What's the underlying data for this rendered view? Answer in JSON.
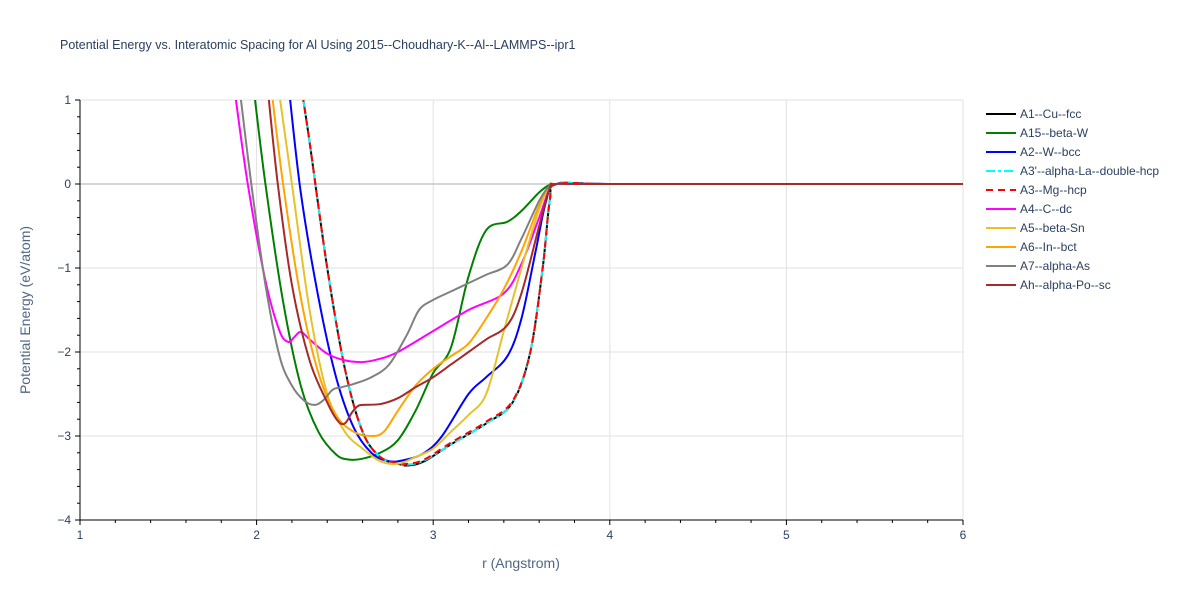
{
  "chart_data": {
    "type": "line",
    "title": "Potential Energy vs. Interatomic Spacing for Al Using 2015--Choudhary-K--Al--LAMMPS--ipr1",
    "xlabel": "r (Angstrom)",
    "ylabel": "Potential Energy (eV/atom)",
    "xlim": [
      1,
      6
    ],
    "ylim": [
      -4,
      1
    ],
    "xticks": [
      "1",
      "2",
      "3",
      "4",
      "5",
      "6"
    ],
    "yticks": [
      "−4",
      "−3",
      "−2",
      "−1",
      "0",
      "1"
    ],
    "grid": true,
    "legend_position": "top-right",
    "series": [
      {
        "name": "A1--Cu--fcc",
        "color": "#000000",
        "dash": "solid",
        "x": [
          2.25,
          2.3,
          2.4,
          2.5,
          2.6,
          2.7,
          2.8,
          2.86,
          2.95,
          3.1,
          3.3,
          3.45,
          3.55,
          3.62,
          3.66,
          3.7,
          4.0,
          5.0,
          6.0
        ],
        "y": [
          1.2,
          0.5,
          -1.0,
          -2.2,
          -2.95,
          -3.25,
          -3.33,
          -3.35,
          -3.3,
          -3.1,
          -2.85,
          -2.6,
          -2.0,
          -1.0,
          -0.2,
          0,
          0,
          0,
          0
        ]
      },
      {
        "name": "A15--beta-W",
        "color": "#008000",
        "dash": "solid",
        "x": [
          1.98,
          2.05,
          2.15,
          2.25,
          2.35,
          2.45,
          2.52,
          2.6,
          2.7,
          2.8,
          2.9,
          3.0,
          3.1,
          3.2,
          3.3,
          3.42,
          3.5,
          3.6,
          3.66,
          3.7,
          4.0,
          6.0
        ],
        "y": [
          1.2,
          0.0,
          -1.4,
          -2.4,
          -2.95,
          -3.22,
          -3.28,
          -3.27,
          -3.2,
          -3.05,
          -2.7,
          -2.25,
          -1.95,
          -1.1,
          -0.55,
          -0.45,
          -0.32,
          -0.1,
          -0.01,
          0,
          0,
          0
        ]
      },
      {
        "name": "A2--W--bcc",
        "color": "#0000ff",
        "dash": "solid",
        "x": [
          2.18,
          2.25,
          2.35,
          2.45,
          2.55,
          2.65,
          2.75,
          2.85,
          2.95,
          3.05,
          3.2,
          3.3,
          3.42,
          3.5,
          3.58,
          3.64,
          3.7,
          4.0,
          6.0
        ],
        "y": [
          1.2,
          -0.1,
          -1.35,
          -2.3,
          -2.9,
          -3.2,
          -3.3,
          -3.28,
          -3.2,
          -3.0,
          -2.5,
          -2.3,
          -2.05,
          -1.6,
          -0.8,
          -0.2,
          0,
          0,
          0
        ]
      },
      {
        "name": "A3'--alpha-La--double-hcp",
        "color": "#00ffff",
        "dash": "dashdot",
        "x": [
          2.25,
          2.3,
          2.4,
          2.5,
          2.6,
          2.7,
          2.8,
          2.86,
          2.95,
          3.1,
          3.3,
          3.45,
          3.55,
          3.62,
          3.66,
          3.7,
          4.0,
          5.0,
          6.0
        ],
        "y": [
          1.2,
          0.5,
          -1.0,
          -2.2,
          -2.95,
          -3.25,
          -3.33,
          -3.34,
          -3.29,
          -3.1,
          -2.85,
          -2.6,
          -2.0,
          -1.0,
          -0.2,
          0,
          0,
          0,
          0
        ]
      },
      {
        "name": "A3--Mg--hcp",
        "color": "#ff0000",
        "dash": "dash",
        "x": [
          2.25,
          2.3,
          2.4,
          2.5,
          2.6,
          2.7,
          2.8,
          2.86,
          2.95,
          3.1,
          3.3,
          3.45,
          3.55,
          3.62,
          3.66,
          3.7,
          4.0,
          5.0,
          6.0
        ],
        "y": [
          1.2,
          0.5,
          -1.0,
          -2.2,
          -2.95,
          -3.25,
          -3.32,
          -3.33,
          -3.28,
          -3.08,
          -2.83,
          -2.58,
          -2.0,
          -1.0,
          -0.2,
          0,
          0,
          0,
          0
        ]
      },
      {
        "name": "A4--C--dc",
        "color": "#ff00ff",
        "dash": "solid",
        "x": [
          1.87,
          1.95,
          2.05,
          2.13,
          2.18,
          2.21,
          2.25,
          2.3,
          2.4,
          2.5,
          2.6,
          2.7,
          2.8,
          3.0,
          3.2,
          3.4,
          3.5,
          3.6,
          3.66,
          3.7,
          4.0,
          6.0
        ],
        "y": [
          1.2,
          0.0,
          -1.15,
          -1.75,
          -1.88,
          -1.83,
          -1.76,
          -1.85,
          -2.02,
          -2.1,
          -2.12,
          -2.08,
          -2.0,
          -1.75,
          -1.5,
          -1.3,
          -0.95,
          -0.4,
          -0.05,
          0,
          0,
          0
        ]
      },
      {
        "name": "A5--beta-Sn",
        "color": "#e6c229",
        "dash": "solid",
        "x": [
          2.12,
          2.2,
          2.3,
          2.4,
          2.5,
          2.6,
          2.7,
          2.8,
          2.9,
          3.0,
          3.1,
          3.2,
          3.3,
          3.4,
          3.5,
          3.6,
          3.66,
          3.7,
          4.0,
          6.0
        ],
        "y": [
          1.2,
          0.0,
          -1.5,
          -2.5,
          -2.95,
          -3.15,
          -3.3,
          -3.33,
          -3.25,
          -3.15,
          -2.95,
          -2.75,
          -2.5,
          -1.75,
          -1.0,
          -0.3,
          -0.02,
          0,
          0,
          0
        ]
      },
      {
        "name": "A6--In--bct",
        "color": "#ffa500",
        "dash": "solid",
        "x": [
          2.08,
          2.15,
          2.25,
          2.35,
          2.45,
          2.55,
          2.65,
          2.72,
          2.8,
          2.9,
          3.0,
          3.1,
          3.2,
          3.3,
          3.4,
          3.5,
          3.6,
          3.66,
          3.7,
          4.0,
          6.0
        ],
        "y": [
          1.2,
          0.0,
          -1.35,
          -2.25,
          -2.75,
          -2.95,
          -3.0,
          -2.95,
          -2.7,
          -2.4,
          -2.2,
          -2.05,
          -1.9,
          -1.6,
          -1.25,
          -0.8,
          -0.25,
          -0.02,
          0,
          0,
          0
        ]
      },
      {
        "name": "A7--alpha-As",
        "color": "#808080",
        "dash": "solid",
        "x": [
          1.9,
          1.97,
          2.05,
          2.13,
          2.2,
          2.27,
          2.33,
          2.38,
          2.43,
          2.48,
          2.55,
          2.65,
          2.75,
          2.85,
          2.92,
          3.0,
          3.1,
          3.2,
          3.3,
          3.42,
          3.5,
          3.6,
          3.66,
          3.7,
          4.0,
          6.0
        ],
        "y": [
          1.2,
          0.0,
          -1.2,
          -2.05,
          -2.4,
          -2.58,
          -2.63,
          -2.57,
          -2.45,
          -2.42,
          -2.38,
          -2.3,
          -2.15,
          -1.8,
          -1.5,
          -1.38,
          -1.28,
          -1.18,
          -1.08,
          -0.96,
          -0.65,
          -0.2,
          -0.02,
          0,
          0,
          0
        ]
      },
      {
        "name": "Ah--alpha-Po--sc",
        "color": "#a52a2a",
        "dash": "solid",
        "x": [
          2.06,
          2.12,
          2.2,
          2.3,
          2.4,
          2.46,
          2.5,
          2.54,
          2.57,
          2.6,
          2.7,
          2.8,
          2.9,
          3.0,
          3.1,
          3.2,
          3.3,
          3.42,
          3.5,
          3.6,
          3.66,
          3.7,
          4.0,
          6.0
        ],
        "y": [
          1.2,
          0.0,
          -1.2,
          -2.1,
          -2.6,
          -2.82,
          -2.85,
          -2.72,
          -2.65,
          -2.63,
          -2.62,
          -2.55,
          -2.42,
          -2.3,
          -2.15,
          -2.0,
          -1.85,
          -1.68,
          -1.3,
          -0.5,
          -0.05,
          0,
          0,
          0
        ]
      }
    ]
  }
}
